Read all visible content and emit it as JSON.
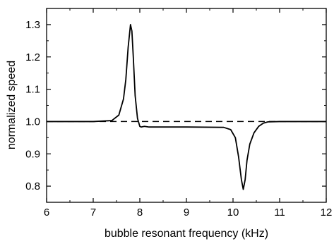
{
  "chart_data": {
    "type": "line",
    "title": "",
    "xlabel": "bubble resonant frequency (kHz)",
    "ylabel": "normalized speed",
    "xlim": [
      6,
      12
    ],
    "ylim": [
      0.75,
      1.35
    ],
    "xticks": [
      "6",
      "7",
      "8",
      "9",
      "10",
      "11",
      "12"
    ],
    "yticks": [
      "0.8",
      "0.9",
      "1.0",
      "1.1",
      "1.2",
      "1.3"
    ],
    "grid": false,
    "legend": "none",
    "series": [
      {
        "style": "solid",
        "color": "#000000",
        "x": [
          6.0,
          7.0,
          7.4,
          7.55,
          7.65,
          7.7,
          7.75,
          7.8,
          7.83,
          7.86,
          7.9,
          7.95,
          8.0,
          8.03,
          8.06,
          8.1,
          8.2,
          9.0,
          9.8,
          9.95,
          10.05,
          10.12,
          10.18,
          10.22,
          10.26,
          10.3,
          10.36,
          10.45,
          10.55,
          10.65,
          10.75,
          11.0,
          12.0
        ],
        "y": [
          1.0,
          1.0,
          1.003,
          1.02,
          1.07,
          1.13,
          1.23,
          1.3,
          1.28,
          1.2,
          1.08,
          1.01,
          0.985,
          0.983,
          0.984,
          0.985,
          0.983,
          0.983,
          0.982,
          0.975,
          0.95,
          0.89,
          0.82,
          0.79,
          0.82,
          0.88,
          0.93,
          0.965,
          0.985,
          0.995,
          0.999,
          1.0,
          1.0
        ]
      },
      {
        "style": "dashed",
        "color": "#000000",
        "x": [
          6.0,
          12.0
        ],
        "y": [
          1.0,
          1.0
        ]
      }
    ]
  },
  "colors": {
    "axis": "#000000",
    "line": "#000000",
    "background": "#ffffff"
  }
}
